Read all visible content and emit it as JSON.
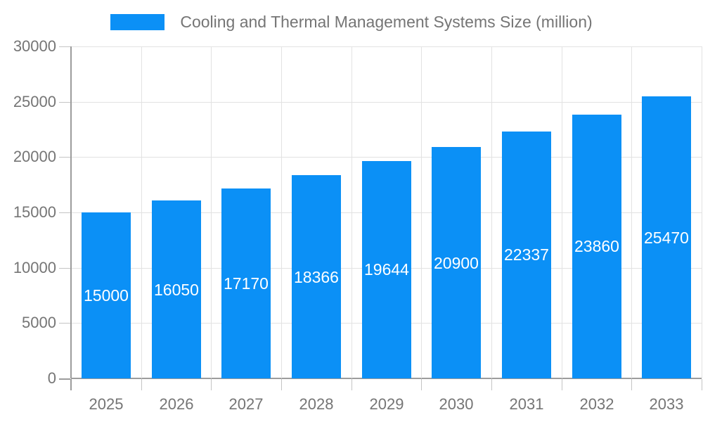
{
  "chart_data": {
    "type": "bar",
    "title": "Cooling and Thermal Management Systems Size (million)",
    "categories": [
      "2025",
      "2026",
      "2027",
      "2028",
      "2029",
      "2030",
      "2031",
      "2032",
      "2033"
    ],
    "values": [
      15000,
      16050,
      17170,
      18366,
      19644,
      20900,
      22337,
      23860,
      25470
    ],
    "xlabel": "",
    "ylabel": "",
    "ylim": [
      0,
      30000
    ],
    "yticks": [
      0,
      5000,
      10000,
      15000,
      20000,
      25000,
      30000
    ],
    "legend_position": "top",
    "grid": true,
    "value_labels": "centered-in-bar",
    "colors": {
      "bar": "#0b90f6",
      "value_label": "#ffffff",
      "grid": "#e2e2e2",
      "axis": "#9c9c9c",
      "tick_mark": "#c4c4c4",
      "tick_label": "#757575",
      "legend_text": "#757575",
      "background": "#ffffff"
    }
  }
}
